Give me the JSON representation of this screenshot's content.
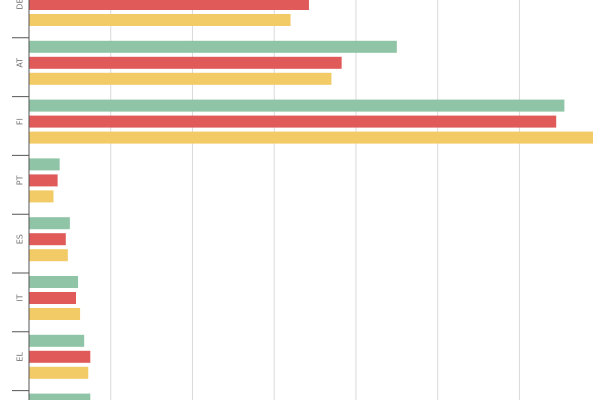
{
  "chart_data": {
    "type": "bar",
    "orientation": "horizontal",
    "categories": [
      "DE",
      "AT",
      "FI",
      "PT",
      "ES",
      "IT",
      "EL",
      ""
    ],
    "series": [
      {
        "color": "#8fc4a6",
        "values": [
          null,
          9.0,
          13.1,
          0.75,
          1.0,
          1.2,
          1.35,
          1.5
        ]
      },
      {
        "color": "#e05a5a",
        "values": [
          6.85,
          7.65,
          12.9,
          0.7,
          0.9,
          1.15,
          1.5,
          null
        ]
      },
      {
        "color": "#f2cb67",
        "values": [
          6.4,
          7.4,
          13.8,
          0.6,
          0.95,
          1.25,
          1.45,
          null
        ]
      }
    ],
    "xlim": [
      0,
      13.8
    ],
    "x_gridlines": [
      0,
      2,
      4,
      6,
      8,
      10,
      12
    ],
    "grid": true,
    "legend": "none"
  }
}
